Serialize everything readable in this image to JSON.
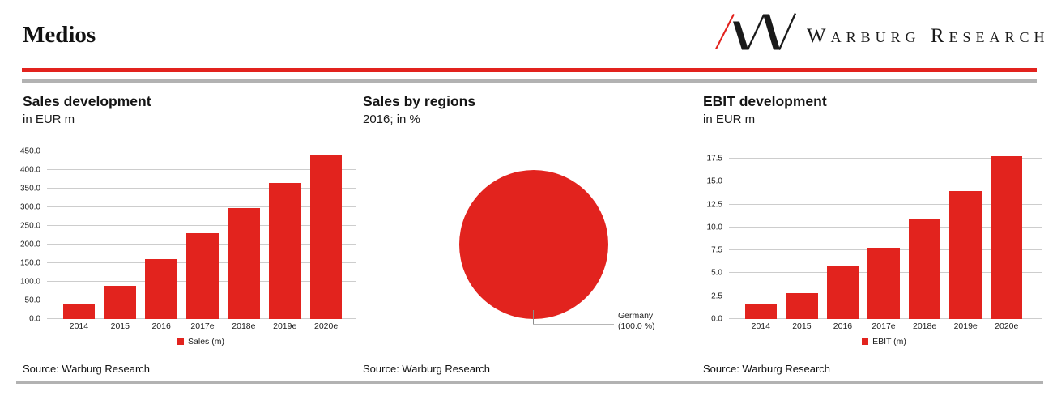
{
  "header": {
    "title": "Medios",
    "brand": "Warburg Research",
    "colors": {
      "accent_red": "#e2231e",
      "rule_gray": "#b2b2b2"
    }
  },
  "chart_data": [
    {
      "type": "bar",
      "title": "Sales development",
      "subtitle": "in EUR m",
      "categories": [
        "2014",
        "2015",
        "2016",
        "2017e",
        "2018e",
        "2019e",
        "2020e"
      ],
      "values": [
        40,
        90,
        160,
        230,
        298,
        365,
        440
      ],
      "ylim": [
        0,
        450
      ],
      "yticks": [
        0,
        50,
        100,
        150,
        200,
        250,
        300,
        350,
        400,
        450
      ],
      "bar_color": "#e2231e",
      "grid": true,
      "legend": "Sales (m)",
      "legend_position": "bottom",
      "source": "Source: Warburg Research"
    },
    {
      "type": "pie",
      "title": "Sales by regions",
      "subtitle": "2016; in %",
      "slices": [
        {
          "label": "Germany",
          "value": 100.0
        }
      ],
      "label_text": "Germany",
      "label_pct": "(100.0 %)",
      "color": "#e2231e",
      "source": "Source: Warburg Research"
    },
    {
      "type": "bar",
      "title": "EBIT development",
      "subtitle": "in EUR m",
      "categories": [
        "2014",
        "2015",
        "2016",
        "2017e",
        "2018e",
        "2019e",
        "2020e"
      ],
      "values": [
        1.6,
        2.8,
        5.8,
        7.8,
        11.0,
        14.0,
        17.8
      ],
      "ylim": [
        0,
        17.5
      ],
      "yticks": [
        0,
        2.5,
        5,
        7.5,
        10,
        12.5,
        15,
        17.5
      ],
      "bar_color": "#e2231e",
      "grid": true,
      "legend": "EBIT (m)",
      "legend_position": "bottom",
      "source": "Source: Warburg Research"
    }
  ]
}
